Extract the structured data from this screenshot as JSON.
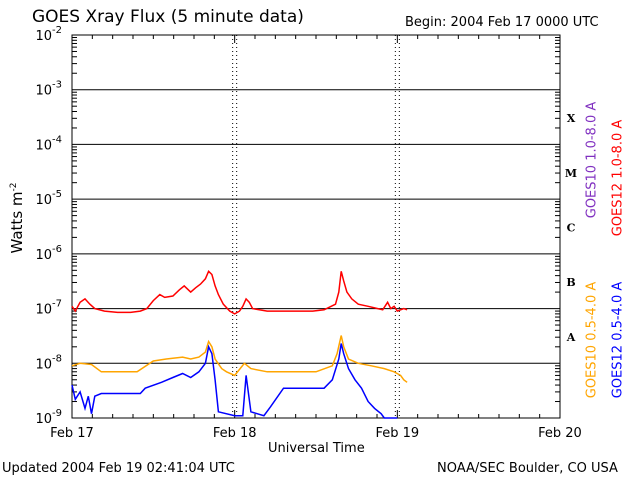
{
  "chart_data": {
    "type": "line",
    "title": "GOES Xray Flux (5 minute data)",
    "begin_label": "Begin:  2004 Feb 17 0000 UTC",
    "xlabel": "Universal Time",
    "ylabel": "Watts m",
    "ylabel_sup": "-2",
    "y_scale": "log",
    "ylim": [
      1e-09,
      0.01
    ],
    "y_ticks": [
      {
        "value": 0.01,
        "base": "10",
        "exp": "-2"
      },
      {
        "value": 0.001,
        "base": "10",
        "exp": "-3"
      },
      {
        "value": 0.0001,
        "base": "10",
        "exp": "-4"
      },
      {
        "value": 1e-05,
        "base": "10",
        "exp": "-5"
      },
      {
        "value": 1e-06,
        "base": "10",
        "exp": "-6"
      },
      {
        "value": 1e-07,
        "base": "10",
        "exp": "-7"
      },
      {
        "value": 1e-08,
        "base": "10",
        "exp": "-8"
      },
      {
        "value": 1e-09,
        "base": "10",
        "exp": "-9"
      }
    ],
    "x_range_days": [
      0,
      3
    ],
    "x_ticks": [
      "Feb 17",
      "Feb 18",
      "Feb 19",
      "Feb 20"
    ],
    "flare_classes": [
      "X",
      "M",
      "C",
      "B",
      "A"
    ],
    "gridlines": "horizontal at each decade",
    "series": [
      {
        "name": "GOES12 1.0-8.0 A",
        "color": "#ff0000",
        "points": [
          [
            0.0,
            1.1e-07
          ],
          [
            0.02,
            9e-08
          ],
          [
            0.05,
            1.3e-07
          ],
          [
            0.08,
            1.5e-07
          ],
          [
            0.11,
            1.2e-07
          ],
          [
            0.14,
            1e-07
          ],
          [
            0.2,
            9e-08
          ],
          [
            0.28,
            8.5e-08
          ],
          [
            0.36,
            8.5e-08
          ],
          [
            0.42,
            9e-08
          ],
          [
            0.46,
            1e-07
          ],
          [
            0.5,
            1.4e-07
          ],
          [
            0.54,
            1.8e-07
          ],
          [
            0.57,
            1.6e-07
          ],
          [
            0.62,
            1.7e-07
          ],
          [
            0.66,
            2.2e-07
          ],
          [
            0.69,
            2.6e-07
          ],
          [
            0.73,
            2e-07
          ],
          [
            0.76,
            2.4e-07
          ],
          [
            0.79,
            2.8e-07
          ],
          [
            0.82,
            3.5e-07
          ],
          [
            0.84,
            4.8e-07
          ],
          [
            0.86,
            4.2e-07
          ],
          [
            0.88,
            2.6e-07
          ],
          [
            0.9,
            1.8e-07
          ],
          [
            0.93,
            1.2e-07
          ],
          [
            0.97,
            9e-08
          ],
          [
            1.0,
            8e-08
          ],
          [
            1.03,
            9e-08
          ],
          [
            1.05,
            1.1e-07
          ],
          [
            1.07,
            1.5e-07
          ],
          [
            1.09,
            1.3e-07
          ],
          [
            1.11,
            1e-07
          ],
          [
            1.2,
            9e-08
          ],
          [
            1.35,
            9e-08
          ],
          [
            1.48,
            9e-08
          ],
          [
            1.55,
            9.5e-08
          ],
          [
            1.62,
            1.2e-07
          ],
          [
            1.64,
            2e-07
          ],
          [
            1.655,
            4.8e-07
          ],
          [
            1.67,
            3.2e-07
          ],
          [
            1.69,
            2e-07
          ],
          [
            1.72,
            1.5e-07
          ],
          [
            1.76,
            1.2e-07
          ],
          [
            1.82,
            1.1e-07
          ],
          [
            1.88,
            1e-07
          ],
          [
            1.91,
            9.5e-08
          ],
          [
            1.94,
            1.3e-07
          ],
          [
            1.96,
            1e-07
          ],
          [
            1.98,
            1.1e-07
          ],
          [
            2.0,
            9e-08
          ],
          [
            2.04,
            1e-07
          ],
          [
            2.06,
            9.5e-08
          ]
        ]
      },
      {
        "name": "GOES10 0.5-4.0 A",
        "color": "#ffa500",
        "points": [
          [
            0.0,
            9e-09
          ],
          [
            0.05,
            1e-08
          ],
          [
            0.12,
            9.5e-09
          ],
          [
            0.18,
            7e-09
          ],
          [
            0.4,
            7e-09
          ],
          [
            0.5,
            1.1e-08
          ],
          [
            0.58,
            1.2e-08
          ],
          [
            0.68,
            1.3e-08
          ],
          [
            0.73,
            1.2e-08
          ],
          [
            0.78,
            1.3e-08
          ],
          [
            0.82,
            1.6e-08
          ],
          [
            0.84,
            2.5e-08
          ],
          [
            0.86,
            2e-08
          ],
          [
            0.88,
            1.2e-08
          ],
          [
            0.92,
            8e-09
          ],
          [
            0.95,
            7e-09
          ],
          [
            1.0,
            6e-09
          ],
          [
            1.06,
            1e-08
          ],
          [
            1.1,
            8e-09
          ],
          [
            1.2,
            7e-09
          ],
          [
            1.4,
            7e-09
          ],
          [
            1.5,
            7e-09
          ],
          [
            1.6,
            9e-09
          ],
          [
            1.63,
            1.5e-08
          ],
          [
            1.655,
            3.2e-08
          ],
          [
            1.67,
            2e-08
          ],
          [
            1.7,
            1.2e-08
          ],
          [
            1.76,
            1e-08
          ],
          [
            1.84,
            9e-09
          ],
          [
            1.92,
            8e-09
          ],
          [
            1.98,
            7e-09
          ],
          [
            2.02,
            6e-09
          ],
          [
            2.04,
            5e-09
          ],
          [
            2.06,
            4.5e-09
          ]
        ]
      },
      {
        "name": "GOES12 0.5-4.0 A",
        "color": "#0000ff",
        "points": [
          [
            0.0,
            4e-09
          ],
          [
            0.02,
            2.2e-09
          ],
          [
            0.05,
            3e-09
          ],
          [
            0.08,
            1.5e-09
          ],
          [
            0.1,
            2.5e-09
          ],
          [
            0.12,
            1.2e-09
          ],
          [
            0.14,
            2.5e-09
          ],
          [
            0.18,
            2.8e-09
          ],
          [
            0.3,
            2.8e-09
          ],
          [
            0.42,
            2.8e-09
          ],
          [
            0.45,
            3.5e-09
          ],
          [
            0.55,
            4.5e-09
          ],
          [
            0.62,
            5.5e-09
          ],
          [
            0.68,
            6.5e-09
          ],
          [
            0.73,
            5.5e-09
          ],
          [
            0.78,
            7e-09
          ],
          [
            0.82,
            1e-08
          ],
          [
            0.84,
            2e-08
          ],
          [
            0.86,
            1.5e-08
          ],
          [
            0.88,
            5e-09
          ],
          [
            0.9,
            1.3e-09
          ],
          [
            1.0,
            1.1e-09
          ],
          [
            1.05,
            1.1e-09
          ],
          [
            1.07,
            6e-09
          ],
          [
            1.1,
            1.3e-09
          ],
          [
            1.18,
            1.1e-09
          ],
          [
            1.22,
            1.6e-09
          ],
          [
            1.3,
            3.5e-09
          ],
          [
            1.4,
            3.5e-09
          ],
          [
            1.55,
            3.5e-09
          ],
          [
            1.6,
            5e-09
          ],
          [
            1.64,
            1.2e-08
          ],
          [
            1.655,
            2.3e-08
          ],
          [
            1.67,
            1.5e-08
          ],
          [
            1.7,
            8e-09
          ],
          [
            1.74,
            5e-09
          ],
          [
            1.78,
            3.5e-09
          ],
          [
            1.82,
            2e-09
          ],
          [
            1.86,
            1.5e-09
          ],
          [
            1.9,
            1.2e-09
          ],
          [
            1.92,
            1e-09
          ],
          [
            1.95,
            1e-09
          ],
          [
            2.0,
            1e-09
          ]
        ]
      }
    ],
    "legend_placement": "right, vertical",
    "legend": [
      {
        "text": "GOES10 1.0-8.0 A",
        "color": "#8030c0"
      },
      {
        "text": "GOES12 1.0-8.0 A",
        "color": "#ff0000"
      },
      {
        "text": "GOES10 0.5-4.0 A",
        "color": "#ffa500"
      },
      {
        "text": "GOES12 0.5-4.0 A",
        "color": "#0000ff"
      }
    ]
  },
  "footer": {
    "updated": "Updated 2004 Feb 19 02:41:04 UTC",
    "credit": "NOAA/SEC Boulder, CO USA"
  }
}
